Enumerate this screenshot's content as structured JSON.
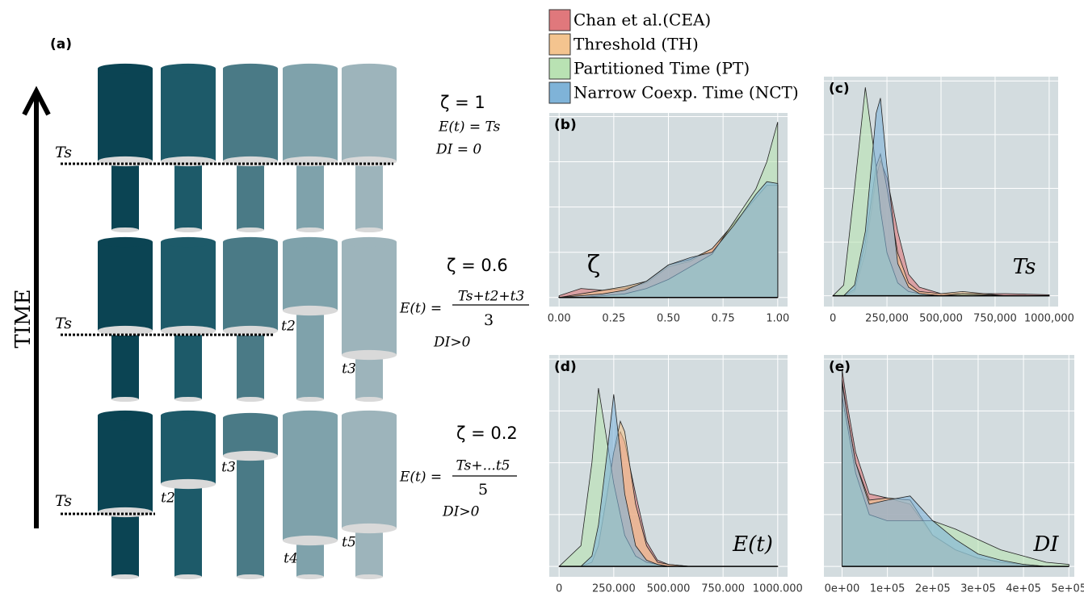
{
  "diagram": {
    "label": "(a)",
    "axis_label": "TIME",
    "rows": [
      {
        "ts": "Ts",
        "zeta": "ζ = 1",
        "expectation": "E(t) = Ts",
        "di": "DI = 0"
      },
      {
        "ts": "Ts",
        "zeta": "ζ = 0.6",
        "expectation": "E(t) =",
        "numerator": "Ts+t2+t3",
        "denominator": "3",
        "di": "DI>0",
        "times": [
          "t2",
          "t3"
        ]
      },
      {
        "ts": "Ts",
        "zeta": "ζ = 0.2",
        "expectation": "E(t) =",
        "numerator": "Ts+...t5",
        "denominator": "5",
        "di": "DI>0",
        "times": [
          "t2",
          "t3",
          "t4",
          "t5"
        ]
      }
    ]
  },
  "legend": [
    {
      "name": "Chan et al.(CEA)",
      "color": "#e0787c"
    },
    {
      "name": "Threshold (TH)",
      "color": "#f4c48f"
    },
    {
      "name": "Partitioned Time (PT)",
      "color": "#b9e2b3"
    },
    {
      "name": "Narrow Coexp. Time (NCT)",
      "color": "#7fb3d8"
    }
  ],
  "chart_data": [
    {
      "type": "area",
      "label": "(b)",
      "annotation": "ζ",
      "x": [
        0,
        0.1,
        0.2,
        0.3,
        0.4,
        0.5,
        0.6,
        0.7,
        0.8,
        0.9,
        0.95,
        1
      ],
      "xlim": [
        -0.045,
        1.045
      ],
      "xticks": [
        {
          "value": 0,
          "label": "0.00"
        },
        0.25,
        {
          "value": 0.5,
          "label": "0.50"
        },
        0.75,
        {
          "value": 1,
          "label": "1.00"
        }
      ],
      "ylim": [
        -0.05,
        1.02
      ],
      "yticks": [
        0,
        0.25,
        0.5,
        0.75,
        1
      ],
      "grid": true,
      "series": [
        {
          "values": [
            0.01,
            0.05,
            0.04,
            0.05,
            0.08,
            0.17,
            0.2,
            0.27,
            0.4,
            0.55,
            0.62,
            0.62
          ]
        },
        {
          "values": [
            0,
            0.02,
            0.04,
            0.06,
            0.09,
            0.18,
            0.21,
            0.27,
            0.41,
            0.55,
            0.62,
            0.62
          ]
        },
        {
          "values": [
            0,
            0,
            0.01,
            0.02,
            0.05,
            0.1,
            0.17,
            0.24,
            0.42,
            0.6,
            0.75,
            0.97
          ]
        },
        {
          "values": [
            0,
            0.01,
            0.02,
            0.04,
            0.09,
            0.18,
            0.22,
            0.25,
            0.4,
            0.57,
            0.64,
            0.63
          ]
        }
      ]
    },
    {
      "type": "area",
      "label": "(c)",
      "annotation": "Ts",
      "x": [
        0,
        50000,
        100000,
        150000,
        200000,
        220000,
        250000,
        300000,
        350000,
        400000,
        500000,
        600000,
        800000,
        1000000
      ],
      "xlim": [
        -41500,
        1041500
      ],
      "xticks": [
        0,
        {
          "value": 250000,
          "label": "250,000"
        },
        {
          "value": 500000,
          "label": "500,000"
        },
        {
          "value": 750000,
          "label": "750,000"
        },
        {
          "value": 1000000,
          "label": "1000,000"
        }
      ],
      "ylim": [
        -0.05,
        1.02
      ],
      "yticks": [
        0,
        0.25,
        0.5,
        0.75,
        1
      ],
      "grid": true,
      "series": [
        {
          "values": [
            0,
            0,
            0.02,
            0.2,
            0.55,
            0.63,
            0.55,
            0.3,
            0.1,
            0.04,
            0.01,
            0.01,
            0.01,
            0.005
          ]
        },
        {
          "values": [
            0,
            0,
            0.03,
            0.25,
            0.6,
            0.66,
            0.5,
            0.2,
            0.06,
            0.02,
            0.01,
            0.02,
            0,
            0
          ]
        },
        {
          "values": [
            0,
            0.05,
            0.5,
            0.97,
            0.6,
            0.4,
            0.2,
            0.06,
            0.02,
            0.01,
            0,
            0.01,
            0,
            0
          ]
        },
        {
          "values": [
            0,
            0,
            0.05,
            0.3,
            0.85,
            0.92,
            0.6,
            0.15,
            0.04,
            0.01,
            0,
            0,
            0,
            0
          ]
        }
      ]
    },
    {
      "type": "area",
      "label": "(d)",
      "annotation": "E(t)",
      "x": [
        0,
        100000,
        150000,
        180000,
        220000,
        250000,
        280000,
        300000,
        350000,
        400000,
        450000,
        500000,
        600000,
        1000000
      ],
      "xlim": [
        -45000,
        1045000
      ],
      "xticks": [
        0,
        {
          "value": 250000,
          "label": "250.000"
        },
        {
          "value": 500000,
          "label": "500.000"
        },
        {
          "value": 750000,
          "label": "750.000"
        },
        {
          "value": 1000000,
          "label": "1000.000"
        }
      ],
      "ylim": [
        -0.05,
        1.02
      ],
      "yticks": [
        0,
        0.25,
        0.5,
        0.75,
        1
      ],
      "grid": true,
      "series": [
        {
          "values": [
            0,
            0,
            0.02,
            0.1,
            0.35,
            0.55,
            0.65,
            0.6,
            0.35,
            0.12,
            0.03,
            0.01,
            0,
            0
          ]
        },
        {
          "values": [
            0,
            0,
            0.02,
            0.1,
            0.35,
            0.55,
            0.7,
            0.65,
            0.3,
            0.1,
            0.02,
            0.01,
            0,
            0
          ]
        },
        {
          "values": [
            0,
            0.1,
            0.5,
            0.86,
            0.6,
            0.4,
            0.25,
            0.15,
            0.05,
            0.02,
            0.01,
            0,
            0,
            0
          ]
        },
        {
          "values": [
            0,
            0,
            0.05,
            0.2,
            0.55,
            0.83,
            0.55,
            0.35,
            0.1,
            0.03,
            0.01,
            0,
            0,
            0
          ]
        }
      ]
    },
    {
      "type": "area",
      "label": "(e)",
      "annotation": "DI",
      "x": [
        0,
        10000,
        30000,
        60000,
        100000,
        150000,
        200000,
        250000,
        300000,
        350000,
        400000,
        450000,
        500000
      ],
      "xlim": [
        -40000,
        512000
      ],
      "xticks": [
        {
          "value": 0,
          "label": "0e+00"
        },
        {
          "value": 100000,
          "label": "1e+05"
        },
        {
          "value": 200000,
          "label": "2e+05"
        },
        {
          "value": 300000,
          "label": "3e+05"
        },
        {
          "value": 400000,
          "label": "4e+05"
        },
        {
          "value": 500000,
          "label": "5e+05"
        }
      ],
      "ylim": [
        -0.05,
        1.02
      ],
      "yticks": [
        0,
        0.25,
        0.5,
        0.75,
        1
      ],
      "grid": true,
      "series": [
        {
          "values": [
            0.95,
            0.8,
            0.55,
            0.35,
            0.33,
            0.3,
            0.15,
            0.08,
            0.04,
            0.02,
            0.01,
            0,
            0
          ]
        },
        {
          "values": [
            0.9,
            0.75,
            0.5,
            0.32,
            0.33,
            0.32,
            0.15,
            0.08,
            0.04,
            0.02,
            0.01,
            0,
            0
          ]
        },
        {
          "values": [
            0.82,
            0.7,
            0.45,
            0.25,
            0.22,
            0.22,
            0.22,
            0.18,
            0.13,
            0.08,
            0.05,
            0.02,
            0.01
          ]
        },
        {
          "values": [
            0.88,
            0.75,
            0.5,
            0.3,
            0.32,
            0.34,
            0.22,
            0.13,
            0.06,
            0.03,
            0.01,
            0,
            0
          ]
        }
      ]
    }
  ]
}
